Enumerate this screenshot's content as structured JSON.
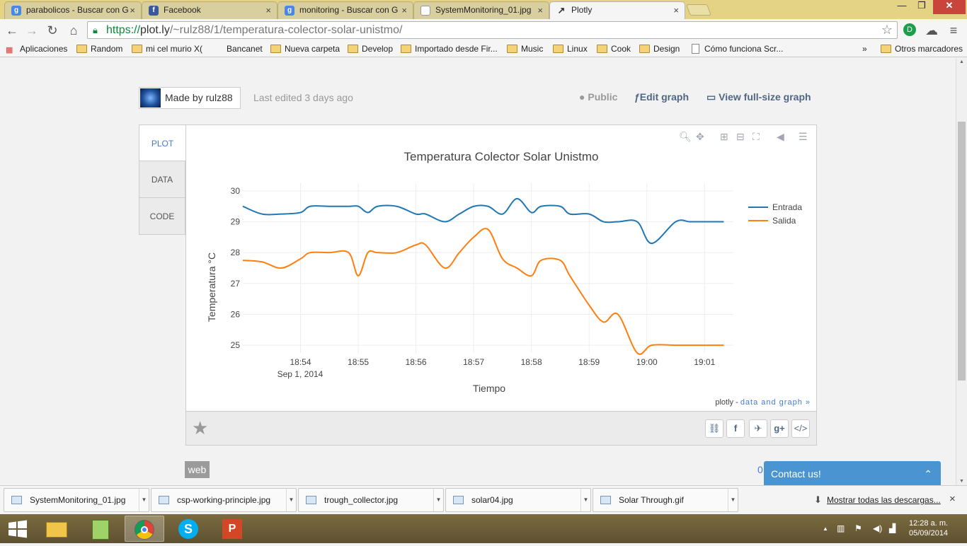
{
  "browser_tabs": [
    {
      "title": "parabolicos - Buscar con G",
      "icon": "google-icon",
      "active": false
    },
    {
      "title": "Facebook",
      "icon": "facebook-icon",
      "active": false
    },
    {
      "title": "monitoring - Buscar con G",
      "icon": "google-icon",
      "active": false
    },
    {
      "title": "SystemMonitoring_01.jpg",
      "icon": "page-icon",
      "active": false
    },
    {
      "title": "Plotly",
      "icon": "plotly-icon",
      "active": true
    }
  ],
  "url": {
    "scheme": "https://",
    "host": "plot.ly",
    "path": "/~rulz88/1/temperatura-colector-solar-unistmo/"
  },
  "bookmarks": [
    "Aplicaciones",
    "Random",
    "mi cel murio X(",
    "Bancanet",
    "Nueva carpeta",
    "Develop",
    "Importado desde Fir...",
    "Music",
    "Linux",
    "Cook",
    "Design",
    "Cómo funciona Scr...",
    "»",
    "Otros marcadores"
  ],
  "header": {
    "made_by": "Made by rulz88",
    "last_edited": "Last edited 3 days ago",
    "public_label": "Public",
    "edit_label": "Edit graph",
    "view_label": "View full-size graph"
  },
  "side_tabs": [
    "PLOT",
    "DATA",
    "CODE"
  ],
  "plot_credit": {
    "prefix": "plotly - ",
    "link": "data and graph »"
  },
  "chart_data": {
    "type": "line",
    "title": "Temperatura Colector Solar Unistmo",
    "xlabel": "Tiempo",
    "ylabel": "Temperatura °C",
    "x_ticks": [
      "18:54",
      "18:55",
      "18:56",
      "18:57",
      "18:58",
      "18:59",
      "19:00",
      "19:01"
    ],
    "x_date_label": "Sep 1, 2014",
    "x_range_min": [
      18.88,
      19.03
    ],
    "yticks": [
      25,
      26,
      27,
      28,
      29,
      30
    ],
    "ylim": [
      24.75,
      30.25
    ],
    "legend": "top-right",
    "grid": true,
    "x": [
      "18:53:00",
      "18:53:20",
      "18:53:40",
      "18:54:00",
      "18:54:10",
      "18:54:30",
      "18:54:50",
      "18:55:00",
      "18:55:10",
      "18:55:20",
      "18:55:40",
      "18:56:00",
      "18:56:10",
      "18:56:30",
      "18:56:45",
      "18:57:00",
      "18:57:15",
      "18:57:30",
      "18:57:45",
      "18:58:00",
      "18:58:10",
      "18:58:30",
      "18:58:40",
      "18:59:00",
      "18:59:15",
      "18:59:30",
      "18:59:50",
      "19:00:05",
      "19:00:30",
      "19:00:45",
      "19:01:00",
      "19:01:20"
    ],
    "series": [
      {
        "name": "Entrada",
        "color": "#1f77b4",
        "values": [
          29.5,
          29.25,
          29.25,
          29.3,
          29.5,
          29.5,
          29.5,
          29.5,
          29.3,
          29.5,
          29.5,
          29.25,
          29.25,
          29.0,
          29.25,
          29.5,
          29.5,
          29.25,
          29.75,
          29.3,
          29.5,
          29.5,
          29.25,
          29.25,
          29.0,
          29.0,
          29.0,
          28.3,
          29.0,
          29.0,
          29.0,
          29.0
        ]
      },
      {
        "name": "Salida",
        "color": "#ff7f0e",
        "values": [
          27.75,
          27.7,
          27.5,
          27.8,
          28.0,
          28.0,
          28.0,
          27.25,
          28.0,
          28.0,
          28.0,
          28.25,
          28.25,
          27.5,
          28.0,
          28.5,
          28.75,
          27.8,
          27.5,
          27.25,
          27.75,
          27.75,
          27.25,
          26.3,
          25.75,
          26.0,
          24.75,
          25.0,
          25.0,
          25.0,
          25.0,
          25.0
        ]
      }
    ]
  },
  "footer": {
    "web_tag": "web",
    "zero": "0",
    "contact": "Contact us!"
  },
  "downloads": [
    "SystemMonitoring_01.jpg",
    "csp-working-principle.jpg",
    "trough_collector.jpg",
    "solar04.jpg",
    "Solar Through.gif"
  ],
  "show_all_downloads": "Mostrar todas las descargas...",
  "clock": {
    "time": "12:28 a. m.",
    "date": "05/09/2014"
  }
}
